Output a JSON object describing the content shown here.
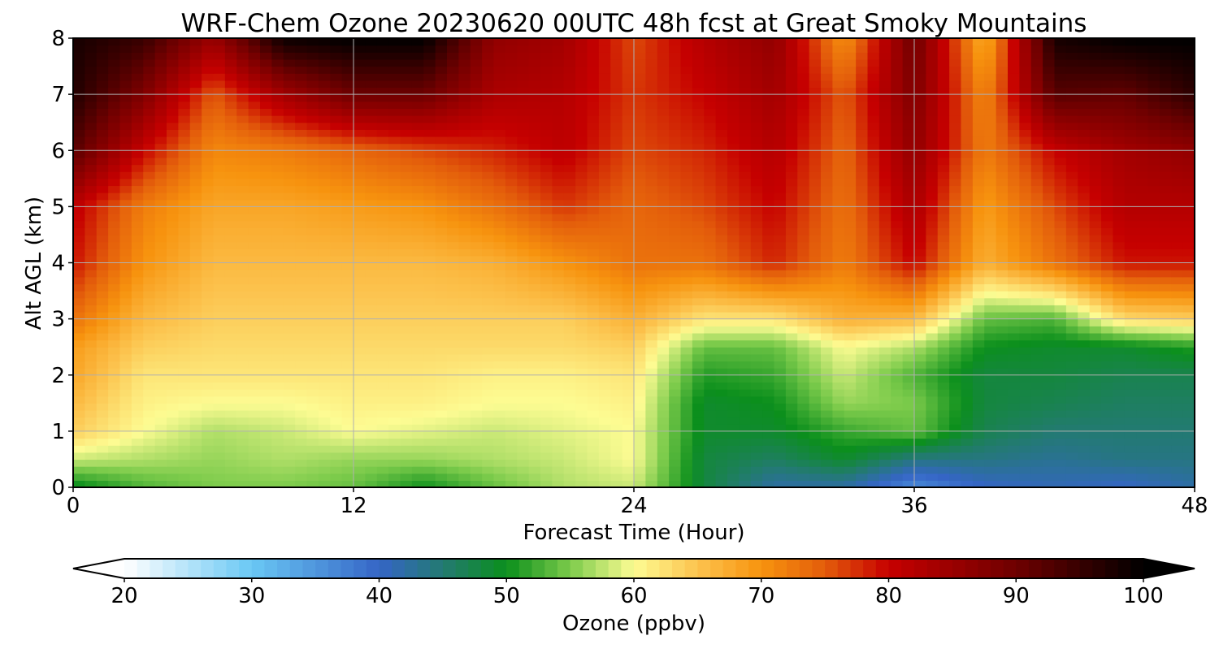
{
  "chart_data": {
    "type": "heatmap",
    "title": "WRF-Chem Ozone  20230620 00UTC 48h fcst at Great Smoky Mountains",
    "xlabel": "Forecast Time (Hour)",
    "ylabel": "Alt AGL (km)",
    "xlim": [
      0,
      48
    ],
    "ylim": [
      0,
      8
    ],
    "x_ticks": [
      0,
      12,
      24,
      36,
      48
    ],
    "y_ticks": [
      0,
      1,
      2,
      3,
      4,
      5,
      6,
      7,
      8
    ],
    "grid": true,
    "colorbar": {
      "label": "Ozone  (ppbv)",
      "ticks": [
        20,
        30,
        40,
        50,
        60,
        70,
        80,
        90,
        100
      ],
      "range": [
        20,
        100
      ],
      "extend": "both",
      "color_stops": [
        {
          "value": 20,
          "color": "#ffffff"
        },
        {
          "value": 30,
          "color": "#6ac8f4"
        },
        {
          "value": 40,
          "color": "#3565c6"
        },
        {
          "value": 45,
          "color": "#237a72"
        },
        {
          "value": 50,
          "color": "#0b8f1c"
        },
        {
          "value": 55,
          "color": "#7ccb4b"
        },
        {
          "value": 60,
          "color": "#fdfc93"
        },
        {
          "value": 65,
          "color": "#fcc34e"
        },
        {
          "value": 70,
          "color": "#f7930e"
        },
        {
          "value": 75,
          "color": "#e35c0b"
        },
        {
          "value": 80,
          "color": "#c60000"
        },
        {
          "value": 90,
          "color": "#6e0000"
        },
        {
          "value": 100,
          "color": "#000000"
        }
      ]
    },
    "altitudes_km": [
      0,
      0.5,
      1,
      1.5,
      2,
      2.5,
      3,
      4,
      5,
      6,
      7,
      8
    ],
    "hours": [
      0,
      3,
      6,
      9,
      12,
      15,
      18,
      21,
      24,
      27,
      30,
      33,
      36,
      39,
      42,
      45,
      48
    ],
    "ozone_ppbv": [
      [
        49,
        53,
        55,
        55,
        54,
        50,
        54,
        57,
        58,
        48,
        42,
        42,
        36,
        40,
        41,
        40,
        42
      ],
      [
        58,
        57,
        56,
        57,
        56,
        56,
        57,
        58,
        60,
        48,
        46,
        49,
        44,
        44,
        43,
        44,
        44
      ],
      [
        64,
        60,
        57,
        58,
        60,
        59,
        58,
        59,
        60,
        49,
        49,
        52,
        54,
        47,
        45,
        45,
        45
      ],
      [
        66,
        61,
        60,
        60,
        61,
        61,
        60,
        60,
        61,
        49,
        50,
        56,
        55,
        48,
        47,
        46,
        46
      ],
      [
        68,
        62,
        62,
        62,
        62,
        62,
        61,
        61,
        62,
        51,
        52,
        58,
        53,
        48,
        48,
        47,
        47
      ],
      [
        69,
        64,
        63,
        63,
        63,
        63,
        63,
        63,
        64,
        54,
        54,
        60,
        57,
        50,
        49,
        49,
        51
      ],
      [
        73,
        66,
        64,
        64,
        64,
        64,
        64,
        64,
        67,
        62,
        62,
        67,
        66,
        54,
        53,
        63,
        64
      ],
      [
        79,
        70,
        66,
        66,
        66,
        66,
        67,
        70,
        73,
        73,
        78,
        72,
        80,
        67,
        73,
        79,
        79
      ],
      [
        81,
        72,
        68,
        68,
        69,
        70,
        73,
        77,
        74,
        76,
        80,
        73,
        83,
        69,
        76,
        82,
        82
      ],
      [
        92,
        80,
        71,
        72,
        74,
        76,
        78,
        81,
        76,
        78,
        82,
        74,
        86,
        72,
        80,
        84,
        86
      ],
      [
        97,
        88,
        75,
        84,
        90,
        90,
        83,
        82,
        77,
        80,
        84,
        75,
        88,
        71,
        92,
        91,
        96
      ],
      [
        98,
        95,
        85,
        99,
        100,
        100,
        86,
        84,
        76,
        82,
        86,
        70,
        90,
        67,
        98,
        100,
        100
      ]
    ]
  }
}
